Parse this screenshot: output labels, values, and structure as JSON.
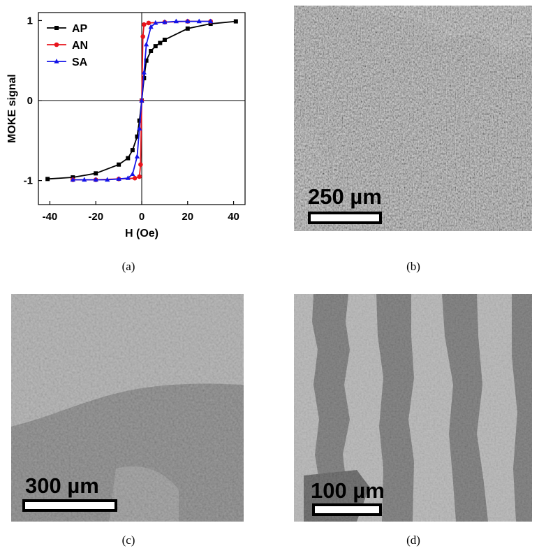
{
  "panel_a": {
    "caption": "(a)",
    "chart_data": {
      "type": "line",
      "title": "",
      "xlabel": "H (Oe)",
      "ylabel": "MOKE signal",
      "xlim": [
        -45,
        45
      ],
      "ylim": [
        -1.3,
        1.1
      ],
      "xticks": [
        -40,
        -20,
        0,
        20,
        40
      ],
      "yticks": [
        -1,
        0,
        1
      ],
      "legend_position": "top-left",
      "series": [
        {
          "name": "AP",
          "color": "#000000",
          "marker": "square",
          "x": [
            -41,
            -30,
            -20,
            -10,
            -6,
            -4,
            -2,
            -1,
            0,
            1,
            2,
            4,
            6,
            8,
            10,
            20,
            30,
            41
          ],
          "y": [
            -0.98,
            -0.96,
            -0.91,
            -0.8,
            -0.72,
            -0.62,
            -0.45,
            -0.25,
            0.0,
            0.28,
            0.5,
            0.62,
            0.68,
            0.72,
            0.76,
            0.9,
            0.96,
            0.99
          ]
        },
        {
          "name": "AN",
          "color": "#e8141c",
          "marker": "circle",
          "x": [
            -30,
            -20,
            -10,
            -3,
            -1,
            -0.5,
            0,
            0.5,
            1,
            3,
            10,
            20,
            30
          ],
          "y": [
            -0.99,
            -0.99,
            -0.98,
            -0.97,
            -0.95,
            -0.8,
            0.0,
            0.8,
            0.95,
            0.97,
            0.98,
            0.99,
            0.99
          ]
        },
        {
          "name": "SA",
          "color": "#1414e8",
          "marker": "triangle",
          "x": [
            -30,
            -25,
            -20,
            -15,
            -10,
            -6,
            -4,
            -2,
            -1,
            0,
            1,
            2,
            4,
            6,
            10,
            15,
            20,
            25,
            30
          ],
          "y": [
            -0.99,
            -0.99,
            -0.99,
            -0.99,
            -0.98,
            -0.97,
            -0.92,
            -0.7,
            -0.35,
            0.0,
            0.35,
            0.7,
            0.92,
            0.97,
            0.98,
            0.99,
            0.99,
            0.99,
            0.99
          ]
        }
      ]
    }
  },
  "panel_b": {
    "caption": "(b)",
    "scale_label": "250 µm"
  },
  "panel_c": {
    "caption": "(c)",
    "scale_label": "300 µm"
  },
  "panel_d": {
    "caption": "(d)",
    "scale_label": "100 µm"
  }
}
